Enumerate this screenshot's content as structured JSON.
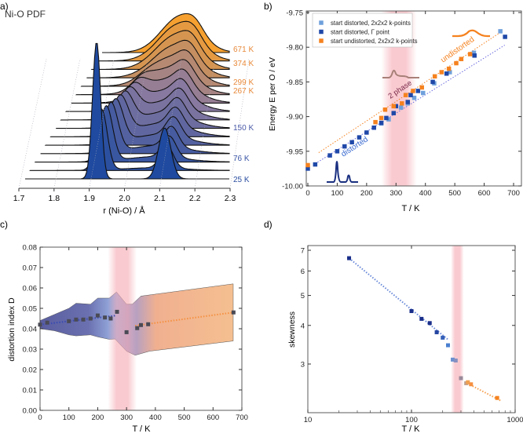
{
  "panels": {
    "a": "a)",
    "b": "b)",
    "c": "c)",
    "d": "d)"
  },
  "chart_data": [
    {
      "panel": "a",
      "type": "ridgeline",
      "title": "Ni-O PDF",
      "xlabel": "r (Ni-O) / Å",
      "xlim": [
        1.7,
        2.3
      ],
      "xticks": [
        "1.7",
        "1.8",
        "1.9",
        "2.0",
        "2.1",
        "2.2",
        "2.3"
      ],
      "temperature_labels": [
        {
          "text": "671 K",
          "color": "#e8893a"
        },
        {
          "text": "374 K",
          "color": "#e8893a"
        },
        {
          "text": "299 K",
          "color": "#e8893a"
        },
        {
          "text": "267 K",
          "color": "#e8893a"
        },
        {
          "text": "150 K",
          "color": "#4a5aa8"
        },
        {
          "text": "76 K",
          "color": "#3a55a5"
        },
        {
          "text": "25 K",
          "color": "#2a4ea0"
        }
      ],
      "colors": {
        "low_T": "#1f4aa0",
        "mid_T": "#8a7aa0",
        "high_T": "#f5a030"
      }
    },
    {
      "panel": "b",
      "type": "scatter",
      "xlabel": "T / K",
      "ylabel": "Energy E per O / eV",
      "xlim": [
        0,
        700
      ],
      "ylim": [
        -10.0,
        -9.75
      ],
      "xticks": [
        "0",
        "100",
        "200",
        "300",
        "400",
        "500",
        "600",
        "700"
      ],
      "yticks": [
        "-9.75",
        "-9.80",
        "-9.85",
        "-9.90",
        "-9.95",
        "-10.00"
      ],
      "legend_position": "top-left",
      "shaded_region": [
        250,
        370
      ],
      "series": [
        {
          "name": "start distorted, 2x2x2 k-points",
          "color": "#6fa0dc",
          "points": [
            [
              250,
              -9.91
            ],
            [
              275,
              -9.904
            ],
            [
              317,
              -9.887
            ],
            [
              340,
              -9.881
            ],
            [
              362,
              -9.873
            ],
            [
              392,
              -9.866
            ],
            [
              430,
              -9.852
            ],
            [
              483,
              -9.836
            ],
            [
              565,
              -9.808
            ],
            [
              655,
              -9.777
            ]
          ]
        },
        {
          "name": "start distorted, Γ point",
          "color": "#1f48a8",
          "points": [
            [
              0,
              -9.975
            ],
            [
              25,
              -9.969
            ],
            [
              75,
              -9.956
            ],
            [
              100,
              -9.95
            ],
            [
              125,
              -9.943
            ],
            [
              150,
              -9.937
            ],
            [
              175,
              -9.93
            ],
            [
              200,
              -9.923
            ],
            [
              225,
              -9.916
            ],
            [
              250,
              -9.909
            ],
            [
              267,
              -9.902
            ],
            [
              292,
              -9.895
            ],
            [
              300,
              -9.885
            ],
            [
              340,
              -9.879
            ],
            [
              350,
              -9.869
            ],
            [
              375,
              -9.863
            ],
            [
              425,
              -9.85
            ],
            [
              472,
              -9.838
            ],
            [
              567,
              -9.812
            ],
            [
              671,
              -9.785
            ]
          ]
        },
        {
          "name": "start undistorted, 2x2x2 k-points",
          "color": "#f5821f",
          "points": [
            [
              0,
              -9.97
            ],
            [
              230,
              -9.908
            ],
            [
              250,
              -9.902
            ],
            [
              263,
              -9.89
            ],
            [
              292,
              -9.885
            ],
            [
              320,
              -9.881
            ],
            [
              333,
              -9.869
            ],
            [
              358,
              -9.863
            ],
            [
              388,
              -9.858
            ],
            [
              432,
              -9.842
            ],
            [
              455,
              -9.836
            ],
            [
              480,
              -9.831
            ],
            [
              505,
              -9.823
            ],
            [
              522,
              -9.817
            ],
            [
              552,
              -9.81
            ]
          ]
        }
      ],
      "fit_lines": [
        {
          "color": "#f5821f",
          "points": [
            [
              37,
              -9.952
            ],
            [
              650,
              -9.78
            ]
          ]
        },
        {
          "color": "#6a6ae0",
          "points": [
            [
              25,
              -9.968
            ],
            [
              670,
              -9.797
            ]
          ]
        }
      ],
      "annotations": [
        {
          "text": "undistorted",
          "color": "#f5821f"
        },
        {
          "text": "distorted",
          "color": "#3a6ad0"
        },
        {
          "text": "2 phase",
          "color": "#7a2a4a"
        }
      ]
    },
    {
      "panel": "c",
      "type": "scatter",
      "xlabel": "T / K",
      "ylabel": "distortion index D",
      "xlim": [
        0,
        700
      ],
      "ylim": [
        0,
        0.08
      ],
      "xticks": [
        "0",
        "100",
        "200",
        "300",
        "400",
        "500",
        "600",
        "700"
      ],
      "yticks": [
        "0.00",
        "0.01",
        "0.02",
        "0.03",
        "0.04",
        "0.05",
        "0.06",
        "0.07",
        "0.08"
      ],
      "shaded_region": [
        235,
        335
      ],
      "points": [
        [
          0,
          0.042
        ],
        [
          25,
          0.043
        ],
        [
          100,
          0.0437
        ],
        [
          125,
          0.0445
        ],
        [
          150,
          0.0445
        ],
        [
          175,
          0.045
        ],
        [
          200,
          0.0465
        ],
        [
          225,
          0.0455
        ],
        [
          245,
          0.045
        ],
        [
          267,
          0.0483
        ],
        [
          300,
          0.0383
        ],
        [
          337,
          0.0403
        ],
        [
          350,
          0.0418
        ],
        [
          375,
          0.0422
        ],
        [
          671,
          0.048
        ]
      ],
      "band_upper": [
        [
          0,
          0.044
        ],
        [
          50,
          0.047
        ],
        [
          100,
          0.05
        ],
        [
          125,
          0.0525
        ],
        [
          175,
          0.052
        ],
        [
          200,
          0.055
        ],
        [
          240,
          0.055
        ],
        [
          265,
          0.058
        ],
        [
          300,
          0.052
        ],
        [
          320,
          0.052
        ],
        [
          350,
          0.056
        ],
        [
          670,
          0.062
        ]
      ],
      "band_lower": [
        [
          0,
          0.04
        ],
        [
          50,
          0.039
        ],
        [
          100,
          0.037
        ],
        [
          125,
          0.0365
        ],
        [
          175,
          0.037
        ],
        [
          200,
          0.036
        ],
        [
          240,
          0.0348
        ],
        [
          260,
          0.035
        ],
        [
          300,
          0.029
        ],
        [
          330,
          0.027
        ],
        [
          380,
          0.029
        ],
        [
          670,
          0.034
        ]
      ],
      "fit_lines": [
        {
          "color": "#3a4ab0",
          "points": [
            [
              0,
              0.042
            ],
            [
              265,
              0.0465
            ]
          ]
        },
        {
          "color": "#f59040",
          "points": [
            [
              330,
              0.0415
            ],
            [
              671,
              0.048
            ]
          ]
        }
      ]
    },
    {
      "panel": "d",
      "type": "scatter",
      "xlabel": "T / K",
      "ylabel": "skewness",
      "xscale": "log",
      "yscale": "log",
      "xlim": [
        10,
        1000
      ],
      "ylim": [
        2.09,
        7.25
      ],
      "xticks": [
        "10",
        "100",
        "1000"
      ],
      "yticks": [
        "3",
        "4",
        "5",
        "6",
        "7"
      ],
      "shaded_region": [
        240,
        320
      ],
      "points": [
        {
          "x": 25,
          "y": 6.6,
          "color": "#1a2f8a"
        },
        {
          "x": 100,
          "y": 4.45,
          "color": "#1a2f8a"
        },
        {
          "x": 125,
          "y": 4.2,
          "color": "#1a2f8a"
        },
        {
          "x": 150,
          "y": 4.07,
          "color": "#1a2f8a"
        },
        {
          "x": 175,
          "y": 3.8,
          "color": "#2545a0"
        },
        {
          "x": 200,
          "y": 3.65,
          "color": "#3560b8"
        },
        {
          "x": 225,
          "y": 3.45,
          "color": "#4a80d0"
        },
        {
          "x": 250,
          "y": 3.1,
          "color": "#6a90d0"
        },
        {
          "x": 267,
          "y": 3.08,
          "color": "#8890c0"
        },
        {
          "x": 300,
          "y": 2.7,
          "color": "#9a8a9a"
        },
        {
          "x": 337,
          "y": 2.6,
          "color": "#c0a090"
        },
        {
          "x": 350,
          "y": 2.62,
          "color": "#f0a050"
        },
        {
          "x": 375,
          "y": 2.58,
          "color": "#f59040"
        },
        {
          "x": 671,
          "y": 2.33,
          "color": "#f5821f"
        }
      ],
      "fit_lines": [
        {
          "color": "#6a8ad8",
          "points": [
            [
              25,
              6.6
            ],
            [
              225,
              3.6
            ]
          ]
        },
        {
          "color": "#f5a050",
          "points": [
            [
              330,
              2.62
            ],
            [
              730,
              2.28
            ]
          ]
        }
      ]
    }
  ]
}
